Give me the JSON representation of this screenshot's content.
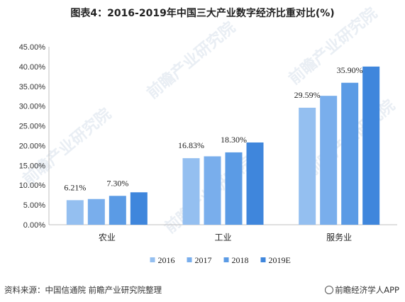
{
  "title": "图表4：2016-2019年中国三大产业数字经济比重对比(%)",
  "source": "资料来源：中国信通院 前瞻产业研究院整理",
  "credit": "前瞻经济学人APP",
  "watermark": "前瞻产业研究院",
  "colors": {
    "2016": "#94bff0",
    "2017": "#79aeec",
    "2018": "#5b9be5",
    "2019E": "#3f86dc"
  },
  "chart_data": {
    "type": "bar",
    "categories": [
      "农业",
      "工业",
      "服务业"
    ],
    "series": [
      {
        "name": "2016",
        "values": [
          6.21,
          16.83,
          29.59
        ]
      },
      {
        "name": "2017",
        "values": [
          6.5,
          17.3,
          32.6
        ]
      },
      {
        "name": "2018",
        "values": [
          7.3,
          18.3,
          35.9
        ]
      },
      {
        "name": "2019E",
        "values": [
          8.2,
          20.8,
          40.0
        ]
      }
    ],
    "data_labels": [
      {
        "category": "农业",
        "series": "2016",
        "text": "6.21%"
      },
      {
        "category": "农业",
        "series": "2018",
        "text": "7.30%"
      },
      {
        "category": "工业",
        "series": "2016",
        "text": "16.83%"
      },
      {
        "category": "工业",
        "series": "2018",
        "text": "18.30%"
      },
      {
        "category": "服务业",
        "series": "2016",
        "text": "29.59%"
      },
      {
        "category": "服务业",
        "series": "2018",
        "text": "35.90%"
      }
    ],
    "yticks": [
      "0.00%",
      "5.00%",
      "10.00%",
      "15.00%",
      "20.00%",
      "25.00%",
      "30.00%",
      "35.00%",
      "40.00%",
      "45.00%"
    ],
    "ylim": [
      0,
      45
    ],
    "grid": false,
    "legend_position": "bottom"
  }
}
